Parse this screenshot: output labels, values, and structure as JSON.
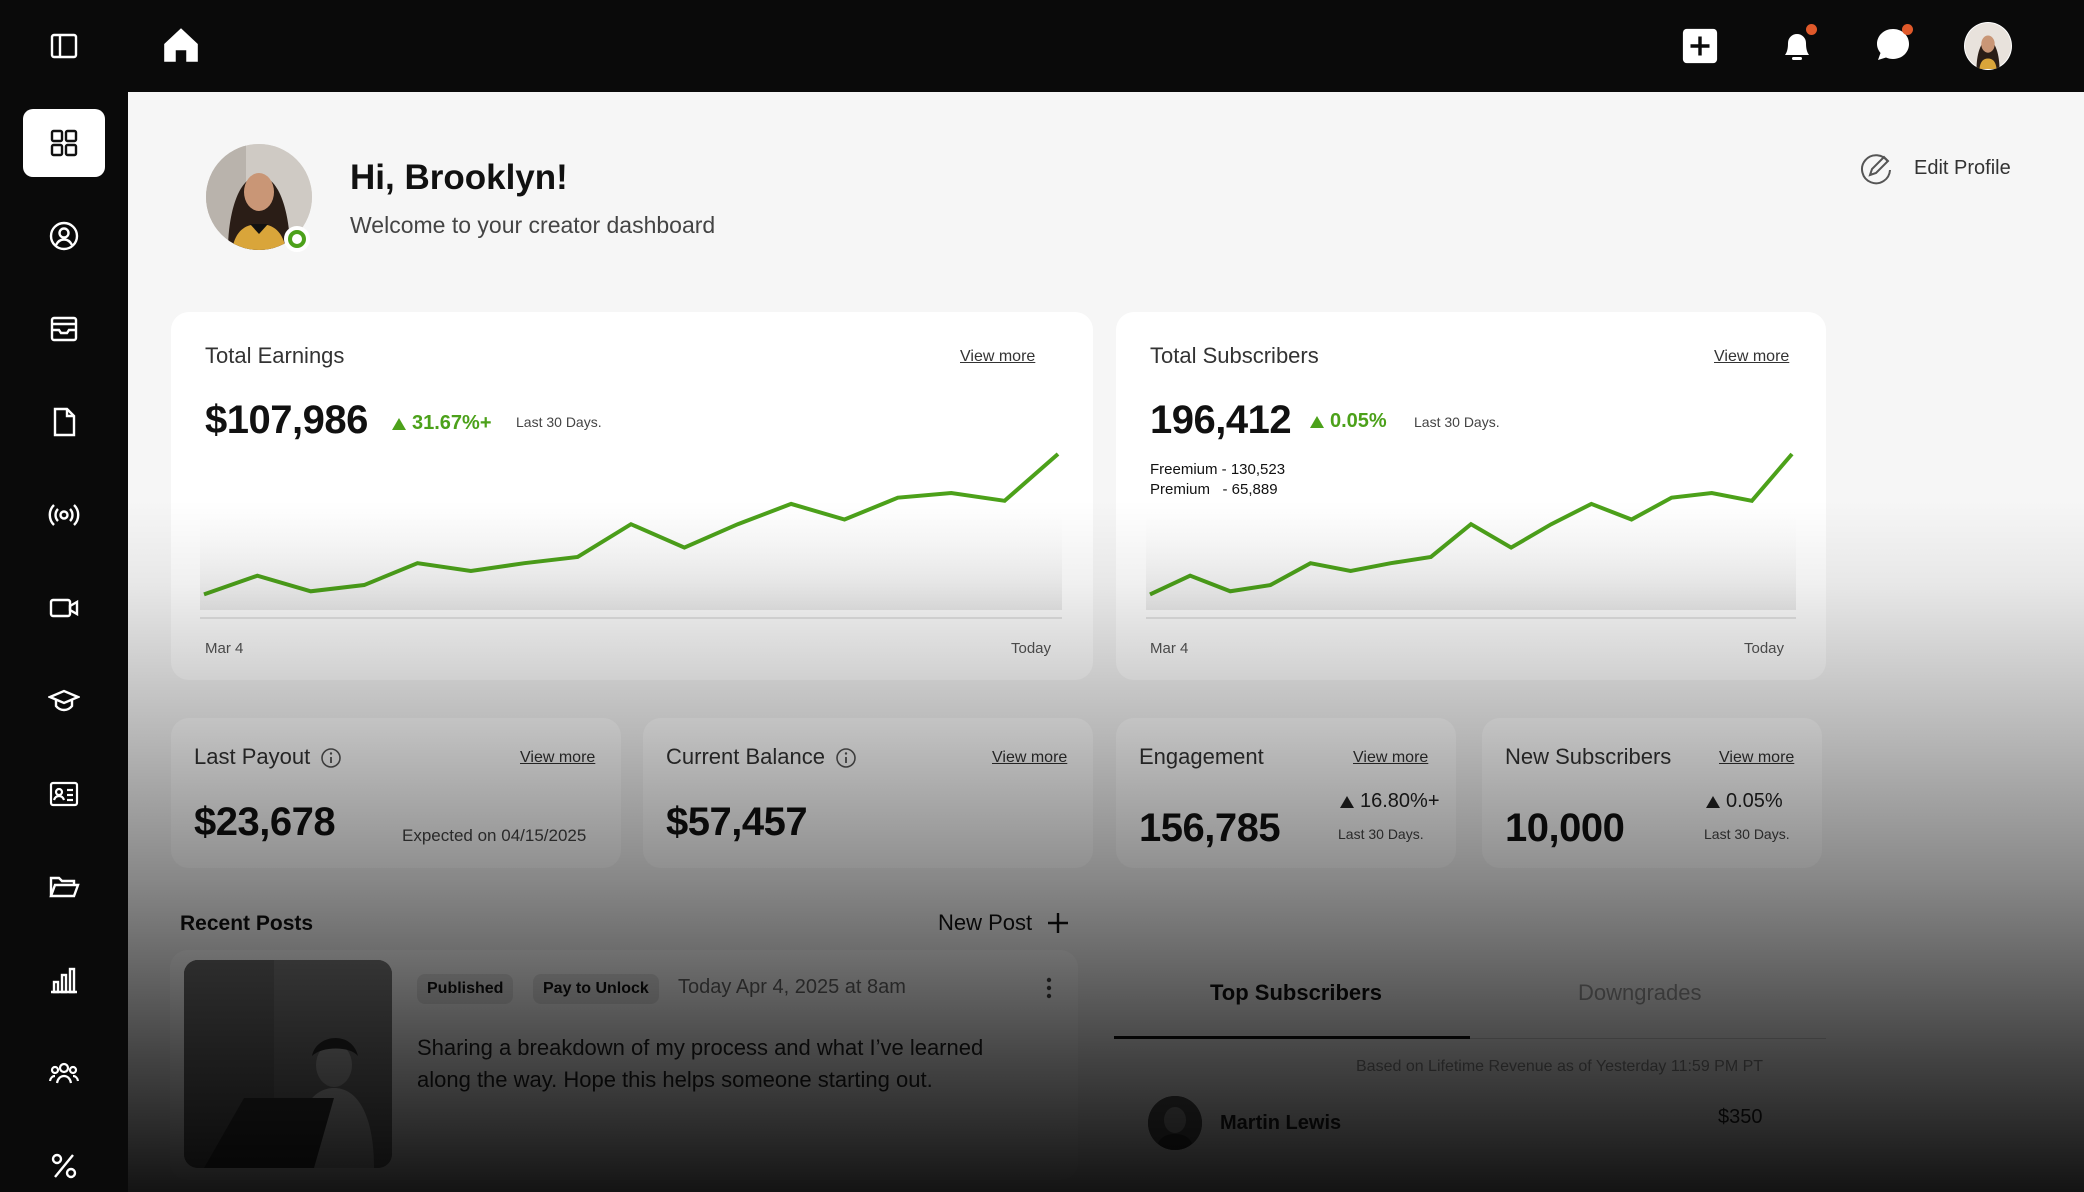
{
  "header": {
    "icons": [
      "home-icon",
      "add-icon",
      "bell-icon",
      "chat-icon",
      "avatar"
    ]
  },
  "sidebar": {
    "items": [
      {
        "name": "sidebar-toggle",
        "icon": "panel-icon"
      },
      {
        "name": "dashboard",
        "icon": "grid-icon",
        "active": true
      },
      {
        "name": "profile",
        "icon": "user-circle-icon"
      },
      {
        "name": "inbox",
        "icon": "inbox-icon"
      },
      {
        "name": "documents",
        "icon": "file-icon"
      },
      {
        "name": "live",
        "icon": "broadcast-icon"
      },
      {
        "name": "video",
        "icon": "video-icon"
      },
      {
        "name": "courses",
        "icon": "graduation-cap-icon"
      },
      {
        "name": "contacts",
        "icon": "id-card-icon"
      },
      {
        "name": "folders",
        "icon": "folder-open-icon"
      },
      {
        "name": "analytics",
        "icon": "bar-chart-icon"
      },
      {
        "name": "community",
        "icon": "users-icon"
      },
      {
        "name": "discounts",
        "icon": "percent-icon"
      }
    ]
  },
  "profile": {
    "greeting": "Hi, Brooklyn!",
    "welcome": "Welcome to your creator dashboard",
    "edit_label": "Edit Profile"
  },
  "earnings": {
    "title": "Total Earnings",
    "view_more": "View more",
    "value": "$107,986",
    "delta": "31.67%+",
    "period": "Last 30 Days.",
    "x_start": "Mar 4",
    "x_end": "Today"
  },
  "subscribers": {
    "title": "Total Subscribers",
    "view_more": "View more",
    "value": "196,412",
    "delta": "0.05%",
    "period": "Last 30 Days.",
    "freemium": "Freemium - 130,523",
    "premium": "Premium   - 65,889",
    "x_start": "Mar 4",
    "x_end": "Today"
  },
  "payout": {
    "title": "Last Payout",
    "view_more": "View more",
    "value": "$23,678",
    "expected": "Expected on 04/15/2025"
  },
  "balance": {
    "title": "Current Balance",
    "view_more": "View more",
    "value": "$57,457"
  },
  "engagement": {
    "title": "Engagement",
    "view_more": "View more",
    "value": "156,785",
    "delta": "16.80%+",
    "period": "Last 30 Days."
  },
  "new_subscribers": {
    "title": "New Subscribers",
    "view_more": "View more",
    "value": "10,000",
    "delta": "0.05%",
    "period": "Last 30 Days."
  },
  "recent_posts": {
    "title": "Recent Posts",
    "new_post": "New Post",
    "post": {
      "status": "Published",
      "access": "Pay to Unlock",
      "date": "Today Apr 4, 2025 at 8am",
      "text": "Sharing a breakdown of my process and what I’ve learned along the way. Hope this helps someone starting out."
    }
  },
  "top_subscribers": {
    "tab_active": "Top Subscribers",
    "tab_inactive": "Downgrades",
    "based_on": "Based on Lifetime Revenue as of Yesterday 11:59 PM PT",
    "rows": [
      {
        "name": "Martin Lewis",
        "amount": "$350"
      }
    ]
  },
  "colors": {
    "accent": "#4ca11a",
    "sidebar": "#0a0a0a",
    "badge": "#e0592a"
  },
  "chart_data": [
    {
      "type": "line",
      "series": [
        {
          "values": [
            10,
            22,
            12,
            16,
            30,
            25,
            30,
            34,
            55,
            40,
            55,
            68,
            58,
            72,
            75,
            70,
            100
          ]
        }
      ],
      "x_labels": [
        "Mar 4",
        "Today"
      ]
    },
    {
      "type": "line",
      "series": [
        {
          "values": [
            10,
            22,
            12,
            16,
            30,
            25,
            30,
            34,
            55,
            40,
            55,
            68,
            58,
            72,
            75,
            70,
            100
          ]
        }
      ],
      "x_labels": [
        "Mar 4",
        "Today"
      ]
    }
  ]
}
